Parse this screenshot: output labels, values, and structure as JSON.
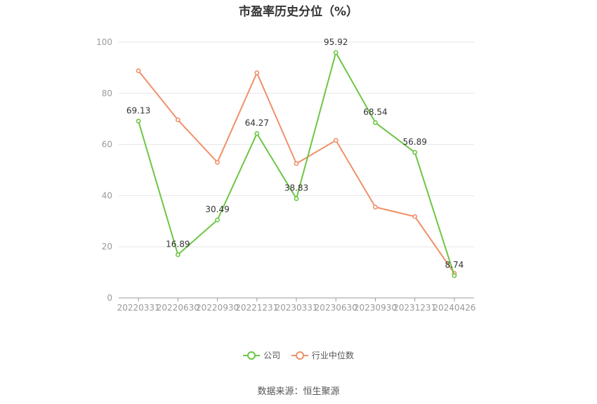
{
  "chart_data": {
    "type": "line",
    "title": "市盈率历史分位（%）",
    "categories": [
      "20220331",
      "20220630",
      "20220930",
      "20221231",
      "20230331",
      "20230630",
      "20230930",
      "20231231",
      "20240426"
    ],
    "ylim": [
      0,
      100
    ],
    "yticks": [
      0,
      20,
      40,
      60,
      80,
      100
    ],
    "grid": true,
    "legend_position": "bottom",
    "series": [
      {
        "name": "公司",
        "color": "#6cc644",
        "values": [
          69.13,
          16.89,
          30.49,
          64.27,
          38.83,
          95.92,
          68.54,
          56.89,
          8.74
        ],
        "labels": [
          "69.13",
          "16.89",
          "30.49",
          "64.27",
          "38.83",
          "95.92",
          "68.54",
          "56.89",
          "8.74"
        ]
      },
      {
        "name": "行业中位数",
        "color": "#f0906a",
        "values": [
          88.8,
          69.6,
          53.0,
          88.0,
          52.5,
          61.6,
          35.5,
          31.8,
          9.6
        ]
      }
    ]
  },
  "footer": {
    "source": "数据来源：恒生聚源"
  }
}
